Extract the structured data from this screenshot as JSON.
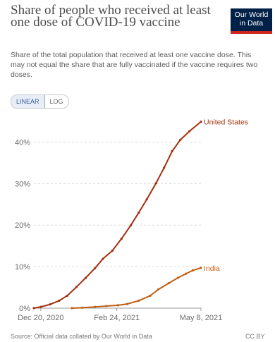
{
  "header": {
    "title": "Share of people who received at least one dose of COVID-19 vaccine",
    "subtitle": "Share of the total population that received at least one vaccine dose. This may not equal the share that are fully vaccinated if the vaccine requires two doses."
  },
  "logo": {
    "line1": "Our World",
    "line2": "in Data",
    "bg": "#002147",
    "accent": "#ce261e"
  },
  "toggle": {
    "linear": "LINEAR",
    "log": "LOG",
    "selected": "LINEAR"
  },
  "footer": {
    "source": "Source: Official data collated by Our World in Data",
    "license": "CC BY"
  },
  "chart_data": {
    "type": "line",
    "title": "Share of people who received at least one dose of COVID-19 vaccine",
    "x_tick_labels": [
      "Dec 20, 2020",
      "Feb 24, 2021",
      "May 8, 2021"
    ],
    "y_tick_labels": [
      "0%",
      "10%",
      "20%",
      "30%",
      "40%"
    ],
    "ylim": [
      0,
      45
    ],
    "grid": "horizontal dashed",
    "x_range": [
      "2020-12-14",
      "2021-05-08"
    ],
    "series": [
      {
        "name": "United States",
        "color": "#a2300f",
        "x": [
          "2020-12-14",
          "2020-12-20",
          "2020-12-28",
          "2021-01-05",
          "2021-01-12",
          "2021-01-20",
          "2021-01-28",
          "2021-02-05",
          "2021-02-12",
          "2021-02-20",
          "2021-02-28",
          "2021-03-08",
          "2021-03-15",
          "2021-03-22",
          "2021-03-30",
          "2021-04-06",
          "2021-04-13",
          "2021-04-20",
          "2021-04-28",
          "2021-05-08"
        ],
        "values": [
          0.0,
          0.3,
          0.9,
          1.8,
          3.0,
          5.1,
          7.3,
          9.6,
          11.9,
          13.8,
          16.7,
          19.9,
          23.0,
          26.2,
          30.1,
          33.8,
          37.8,
          40.5,
          42.6,
          44.9
        ]
      },
      {
        "name": "India",
        "color": "#c15f14",
        "x": [
          "2021-01-16",
          "2021-01-25",
          "2021-02-05",
          "2021-02-15",
          "2021-02-25",
          "2021-03-05",
          "2021-03-15",
          "2021-03-25",
          "2021-04-01",
          "2021-04-10",
          "2021-04-18",
          "2021-04-25",
          "2021-05-01",
          "2021-05-08"
        ],
        "values": [
          0.0,
          0.1,
          0.3,
          0.5,
          0.7,
          1.0,
          1.8,
          3.0,
          4.5,
          6.0,
          7.3,
          8.3,
          9.1,
          9.7
        ]
      }
    ]
  }
}
